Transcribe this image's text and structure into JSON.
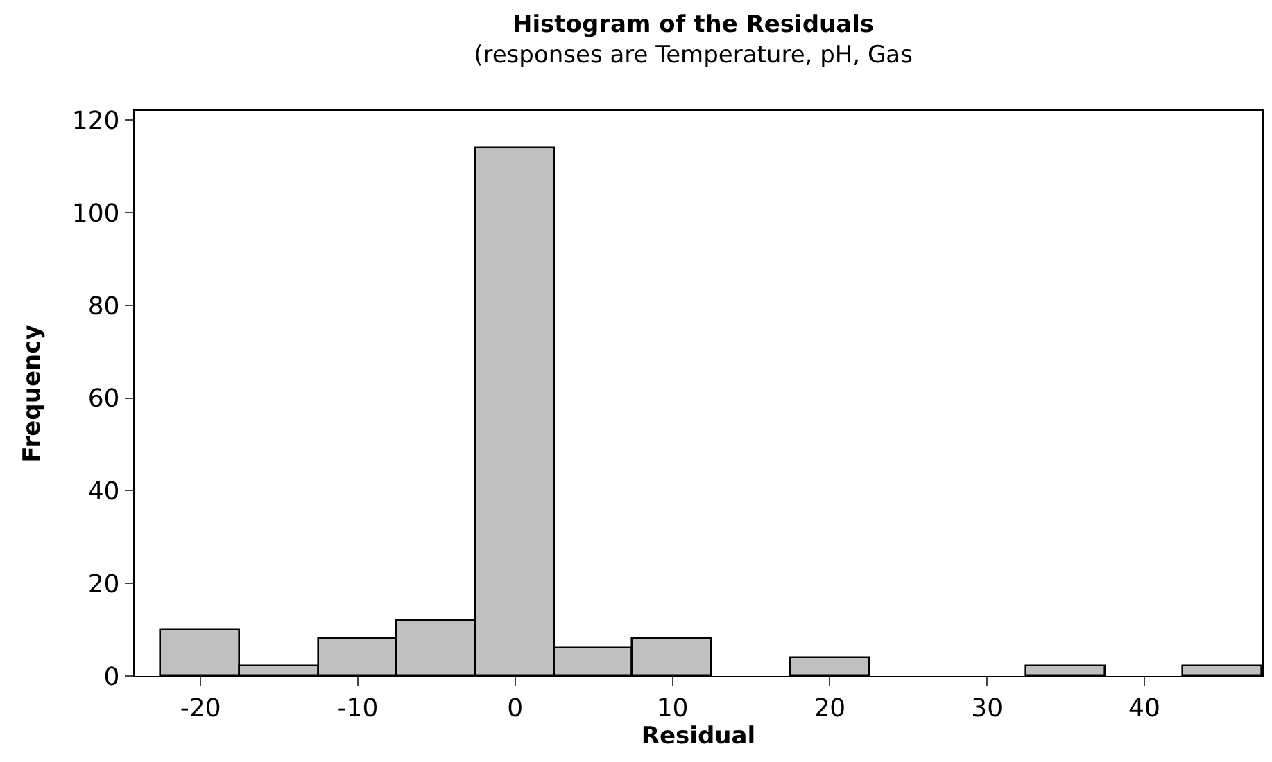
{
  "chart_data": {
    "type": "histogram",
    "title": "Histogram of the Residuals",
    "subtitle": "(responses are Temperature, pH, Gas",
    "xlabel": "Residual",
    "ylabel": "Frequency",
    "bins": [
      -22.5,
      -17.5,
      -12.5,
      -7.5,
      -2.5,
      2.5,
      7.5,
      12.5,
      17.5,
      22.5,
      27.5,
      32.5,
      37.5,
      42.5,
      47.5
    ],
    "values": [
      10,
      2,
      8,
      12,
      114,
      6,
      8,
      0,
      4,
      0,
      0,
      2,
      0,
      2
    ],
    "color": "#c0c0c0",
    "xlim": [
      -24.2,
      47.5
    ],
    "xticks": [
      -20,
      -10,
      0,
      10,
      20,
      30,
      40
    ],
    "ylim": [
      0,
      122
    ],
    "yticks": [
      0,
      20,
      40,
      60,
      80,
      100,
      120
    ]
  }
}
